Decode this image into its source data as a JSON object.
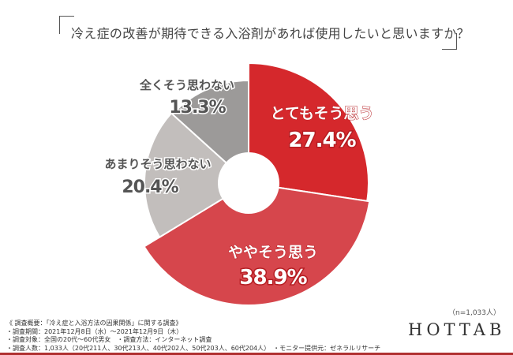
{
  "title": "冷え症の改善が期待できる入浴剤があれば使用したいと思いますか？",
  "chart_data": {
    "type": "pie",
    "donut": true,
    "start": "12 o'clock, clockwise",
    "categories": [
      "とてもそう思う",
      "ややそう思う",
      "あまりそう思わない",
      "全くそう思わない"
    ],
    "values": [
      27.4,
      38.9,
      20.4,
      13.3
    ],
    "value_labels": [
      "27.4%",
      "38.9%",
      "20.4%",
      "13.3%"
    ],
    "colors": [
      "#d5282c",
      "#d6464c",
      "#c2bebc",
      "#9c9a99"
    ],
    "label_colors": [
      "#ffffff",
      "#ffffff",
      "#555555",
      "#555555"
    ],
    "legend": "none"
  },
  "sample_size": "（n=1,033人）",
  "notes": [
    "《 調査概要：「冷え症と入浴方法の因果関係」に関する調査》",
    "・調査期間：2021年12月8日（水）～2021年12月9日（木）",
    "・調査対象：全国の20代～60代男女　・調査方法：インターネット調査",
    "・調査人数：1,033人（20代211人、30代213人、40代202人、50代203人、60代204人）　・モニター提供元：ゼネラルリサーチ"
  ],
  "logo": "HOTTAB"
}
